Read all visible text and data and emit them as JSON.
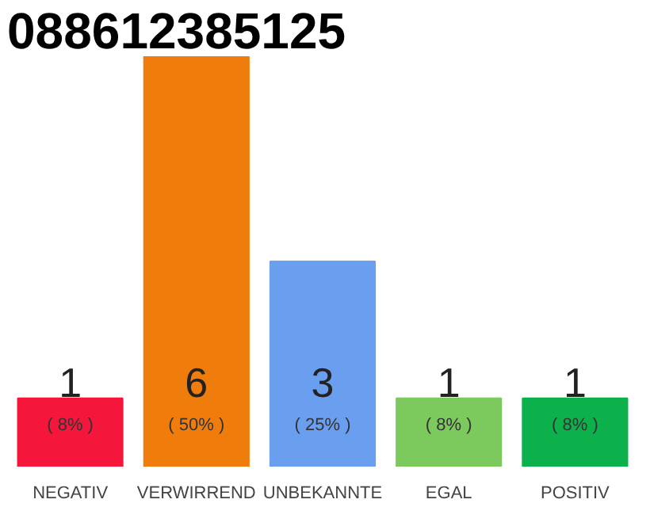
{
  "chart_data": {
    "type": "bar",
    "title": "088612385125",
    "categories": [
      "NEGATIV",
      "VERWIRREND",
      "UNBEKANNTE",
      "EGAL",
      "POSITIV"
    ],
    "values": [
      1,
      6,
      3,
      1,
      1
    ],
    "colors": [
      "#f5163b",
      "#f07c0c",
      "#6a9ff0",
      "#7cc95d",
      "#0db14b"
    ],
    "value_labels": [
      "1",
      "6",
      "3",
      "1",
      "1"
    ],
    "annotations": [
      "( 8% )",
      "( 50% )",
      "( 25% )",
      "( 8% )",
      "( 8% )"
    ],
    "grid": false,
    "tick_labels": "x"
  }
}
